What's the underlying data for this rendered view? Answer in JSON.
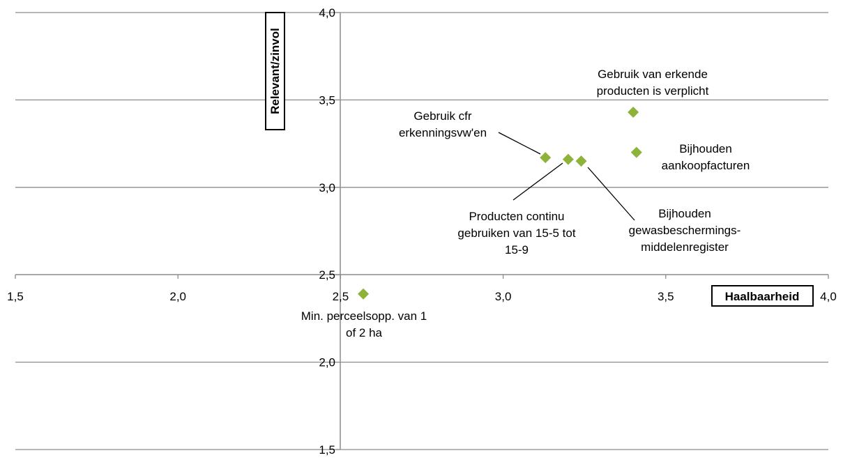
{
  "chart_data": {
    "type": "scatter",
    "xlabel": "Haalbaarheid",
    "ylabel": "Relevant/zinvol",
    "xlim": [
      1.5,
      4.0
    ],
    "ylim": [
      1.5,
      4.0
    ],
    "x_ticks": [
      "1,5",
      "2,0",
      "2,5",
      "3,0",
      "3,5",
      "4,0"
    ],
    "y_ticks": [
      "1,5",
      "2,0",
      "2,5",
      "3,0",
      "3,5",
      "4,0"
    ],
    "gridlines": "horizontal",
    "marker": "diamond",
    "marker_color": "#8DB33A",
    "points": [
      {
        "x": 3.4,
        "y": 3.43,
        "label": [
          "Gebruik van erkende",
          "producten is verplicht"
        ]
      },
      {
        "x": 3.41,
        "y": 3.2,
        "label": [
          "Bijhouden",
          "aankoopfacturen"
        ]
      },
      {
        "x": 3.13,
        "y": 3.17,
        "label": [
          "Gebruik cfr",
          "erkenningsvw'en"
        ]
      },
      {
        "x": 3.2,
        "y": 3.16,
        "label": [
          "Producten continu",
          "gebruiken van 15-5 tot",
          "15-9"
        ]
      },
      {
        "x": 3.24,
        "y": 3.15,
        "label": [
          "Bijhouden",
          "gewasbeschermings-",
          "middelenregister"
        ]
      },
      {
        "x": 2.57,
        "y": 2.39,
        "label": [
          "Min. perceelsopp. van 1",
          "of 2 ha"
        ]
      }
    ]
  }
}
